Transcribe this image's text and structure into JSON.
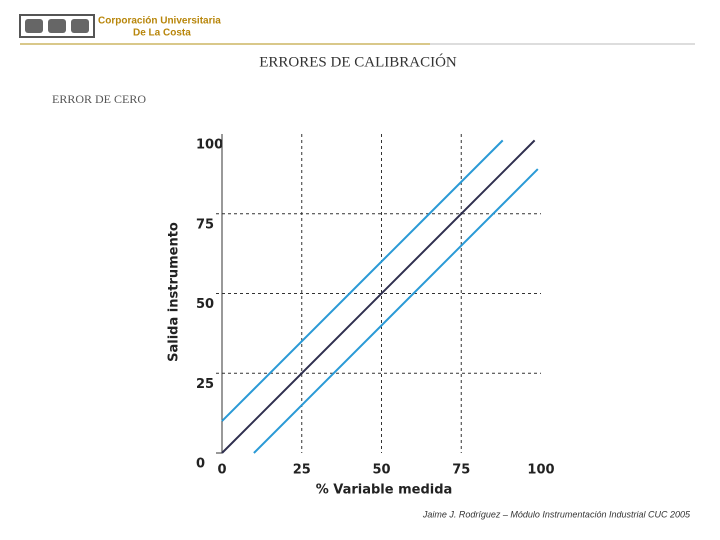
{
  "header": {
    "org_line1": "Corporación Universitaria",
    "org_line2": "De La Costa"
  },
  "chart_data": {
    "type": "line",
    "title": "ERRORES DE CALIBRACIÓN",
    "subtitle": "ERROR DE CERO",
    "x_label": "% Variable medida",
    "y_label": "Salida instrumento",
    "xlim": [
      0,
      100
    ],
    "xticks": [
      0,
      25,
      50,
      75,
      100
    ],
    "ylim": [
      0,
      100
    ],
    "yticks": [
      0,
      25,
      50,
      75,
      100
    ],
    "grid": true,
    "series": [
      {
        "color": "#2f2f4f",
        "x": [
          0,
          98
        ],
        "values": [
          0,
          98
        ]
      },
      {
        "color": "#2a9ad6",
        "x": [
          0,
          88
        ],
        "values": [
          10,
          98
        ]
      },
      {
        "color": "#2a9ad6",
        "x": [
          10,
          99
        ],
        "values": [
          0,
          89
        ]
      }
    ]
  },
  "footer": "Jaime J. Rodríguez – Módulo Instrumentación Industrial CUC 2005"
}
